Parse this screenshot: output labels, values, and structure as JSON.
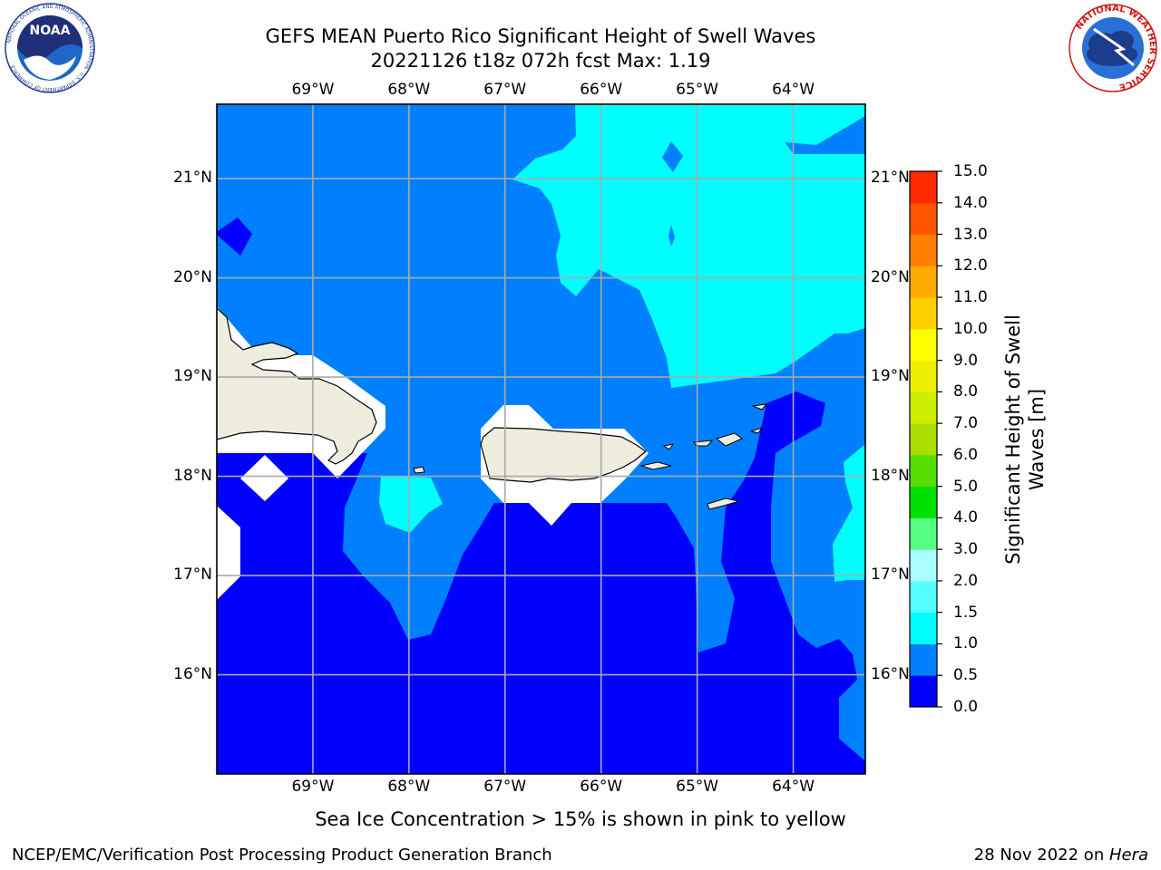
{
  "header": {
    "title_line1": "GEFS MEAN Puerto Rico Significant Height of Swell Waves",
    "title_line2": "20221126 t18z 072h fcst   Max: 1.19"
  },
  "logos": {
    "left": "NOAA",
    "left_ring_text": "NATIONAL OCEANIC AND ATMOSPHERIC ADMINISTRATION · U.S. DEPARTMENT OF COMMERCE",
    "right_ring_text": "NATIONAL WEATHER SERVICE"
  },
  "map": {
    "lon_labels": [
      "69°W",
      "68°W",
      "67°W",
      "66°W",
      "65°W",
      "64°W"
    ],
    "lat_labels": [
      "21°N",
      "20°N",
      "19°N",
      "18°N",
      "17°N",
      "16°N"
    ],
    "lon_values": [
      -69,
      -68,
      -67,
      -66,
      -65,
      -64
    ],
    "lat_values": [
      21,
      20,
      19,
      18,
      17,
      16
    ],
    "lon_range": [
      -70.0,
      -63.25
    ],
    "lat_range": [
      15.0,
      21.75
    ],
    "gridlines": true,
    "land_color": "#efedde",
    "colors": {
      "0.0-0.5": "#0000ff",
      "0.5-1.0": "#0080ff",
      "1.0-1.5": "#00ffff"
    }
  },
  "colorbar": {
    "levels": [
      0.0,
      0.5,
      1.0,
      1.5,
      2.0,
      3.0,
      4.0,
      5.0,
      6.0,
      7.0,
      8.0,
      9.0,
      10.0,
      11.0,
      12.0,
      13.0,
      14.0,
      15.0
    ],
    "tick_labels": [
      "0.0",
      "0.5",
      "1.0",
      "1.5",
      "2.0",
      "3.0",
      "4.0",
      "5.0",
      "6.0",
      "7.0",
      "8.0",
      "9.0",
      "10.0",
      "11.0",
      "12.0",
      "13.0",
      "14.0",
      "15.0"
    ],
    "colors": [
      "#0000ff",
      "#0080ff",
      "#00ffff",
      "#55ffff",
      "#aaffff",
      "#55ff80",
      "#00e000",
      "#55dd00",
      "#aadd00",
      "#ccee00",
      "#eeee00",
      "#ffff00",
      "#ffd000",
      "#ffaa00",
      "#ff8000",
      "#ff5500",
      "#ff2a00",
      "#ff0000"
    ],
    "label": "Significant Height of Swell\nWaves [m]"
  },
  "note": "Sea Ice Concentration > 15% is shown in pink to yellow",
  "footer": {
    "left": "NCEP/EMC/Verification Post Processing Product Generation Branch",
    "right_date": "28 Nov 2022 on ",
    "right_host": "Hera"
  }
}
